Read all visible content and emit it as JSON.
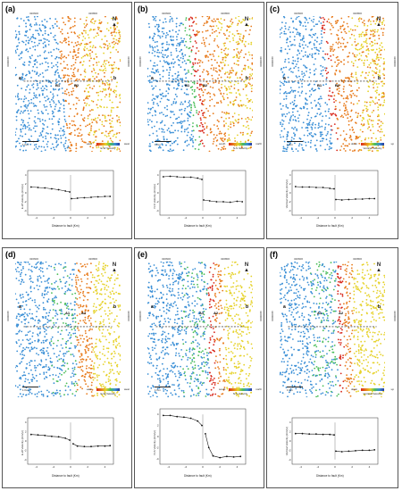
{
  "panels": [
    {
      "id": "a",
      "label": "(a)",
      "legend_low": "east",
      "legend_high": "west",
      "legend_caption": "E-W Velocity",
      "graph_ylabel": "E-W Velocity (mm/yr)",
      "graph_xlabel": "Distance to fault (Km)",
      "profile_start": "a",
      "profile_end": "b",
      "fault_labels": [
        "B1",
        "B2"
      ],
      "scale": "1 Km",
      "coord_top_left": "320600",
      "coord_top_right": "320800",
      "coord_left": "3260000",
      "coord_right": "3260000"
    },
    {
      "id": "b",
      "label": "(b)",
      "legend_low": "south",
      "legend_high": "north",
      "legend_caption": "N-S Velocity",
      "graph_ylabel": "N-S Velocity (mm/yr)",
      "graph_xlabel": "Distance to fault (Km)",
      "profile_start": "a",
      "profile_end": "b",
      "fault_labels": [
        "B1",
        "B2"
      ],
      "scale": "1 Km",
      "coord_top_left": "320600",
      "coord_top_right": "320800",
      "coord_left": "3260000",
      "coord_right": "3260000"
    },
    {
      "id": "c",
      "label": "(c)",
      "legend_low": "down",
      "legend_high": "up",
      "legend_caption": "Vertical Velocity",
      "graph_ylabel": "Vertical Velocity (mm/yr)",
      "graph_xlabel": "Distance to fault (Km)",
      "profile_start": "a",
      "profile_end": "b",
      "fault_labels": [
        "B1",
        "B2"
      ],
      "scale": "1 Km",
      "coord_top_left": "320600",
      "coord_top_right": "320800",
      "coord_left": "3260000",
      "coord_right": "3260000"
    },
    {
      "id": "d",
      "label": "(d)",
      "legend_low": "east",
      "legend_high": "west",
      "legend_caption": "E-W Velocity",
      "graph_ylabel": "E-W Velocity (mm/yr)",
      "graph_xlabel": "Distance to fault (Km)",
      "profile_start": "a",
      "profile_end": "b",
      "fault_labels": [
        "A1",
        "A2"
      ],
      "scale": "1 Km",
      "coord_top_left": "320600",
      "coord_top_right": "320800",
      "coord_left": "3260000",
      "coord_right": "3260000"
    },
    {
      "id": "e",
      "label": "(e)",
      "legend_low": "south",
      "legend_high": "north",
      "legend_caption": "N-S Velocity",
      "graph_ylabel": "N-S Velocity (mm/yr)",
      "graph_xlabel": "Distance to fault (Km)",
      "profile_start": "a",
      "profile_end": "b",
      "fault_labels": [
        "A1",
        "A2"
      ],
      "scale": "1 Km",
      "coord_top_left": "320600",
      "coord_top_right": "320800",
      "coord_left": "3260000",
      "coord_right": "3260000"
    },
    {
      "id": "f",
      "label": "(f)",
      "legend_low": "down",
      "legend_high": "up",
      "legend_caption": "Vertical Velocity",
      "graph_ylabel": "Vertical Velocity (mm/yr)",
      "graph_xlabel": "Distance to fault (Km)",
      "profile_start": "a",
      "profile_end": "b",
      "fault_labels": [
        "A1",
        "A2"
      ],
      "scale": "1 Km",
      "coord_top_left": "320600",
      "coord_top_right": "320800",
      "coord_left": "3260000",
      "coord_right": "3260000"
    }
  ],
  "north_symbol": "N",
  "colors": {
    "west_blue": "#3a8fd6",
    "east_orange": "#e87b1c",
    "east_yellow": "#e6d22a",
    "fault_red": "#d8281c",
    "green": "#4bbd5a"
  },
  "chart_data": [
    {
      "type": "scatter",
      "panel": "a",
      "xlabel": "Distance to fault (Km)",
      "ylabel": "E-W Velocity (mm/yr)",
      "x_ticks": [
        "-4",
        "-2",
        "0",
        "2",
        "4"
      ],
      "y_ticks": [
        "4",
        "2",
        "0",
        "-2",
        "-4"
      ],
      "xlim": [
        -5,
        5
      ],
      "ylim": [
        -5,
        5
      ],
      "series": [
        {
          "x": [
            -4.6,
            -3.8,
            -3.0,
            -2.2,
            -1.4,
            -0.6,
            -0.1,
            0.1,
            0.8,
            1.6,
            2.4,
            3.2,
            4.0,
            4.6
          ],
          "y": [
            1.3,
            1.2,
            1.1,
            0.9,
            0.7,
            0.4,
            0.2,
            -1.3,
            -1.2,
            -1.1,
            -1.0,
            -0.9,
            -0.8,
            -0.8
          ]
        }
      ]
    },
    {
      "type": "scatter",
      "panel": "b",
      "xlabel": "Distance to fault (Km)",
      "ylabel": "N-S Velocity (mm/yr)",
      "x_ticks": [
        "-4",
        "-2",
        "0",
        "2",
        "4"
      ],
      "y_ticks": [
        "4",
        "2",
        "0",
        "-2",
        "-4"
      ],
      "xlim": [
        -5,
        5
      ],
      "ylim": [
        -5,
        5
      ],
      "series": [
        {
          "x": [
            -4.6,
            -3.8,
            -3.0,
            -2.2,
            -1.4,
            -0.6,
            -0.1,
            0.1,
            0.8,
            1.6,
            2.4,
            3.2,
            4.0,
            4.6
          ],
          "y": [
            3.6,
            3.7,
            3.6,
            3.5,
            3.5,
            3.3,
            3.0,
            -1.6,
            -1.8,
            -2.0,
            -2.0,
            -2.1,
            -1.9,
            -2.0
          ]
        }
      ]
    },
    {
      "type": "scatter",
      "panel": "c",
      "xlabel": "Distance to fault (Km)",
      "ylabel": "Vertical Velocity (mm/yr)",
      "x_ticks": [
        "-4",
        "-2",
        "0",
        "2",
        "4"
      ],
      "y_ticks": [
        "4",
        "2",
        "0",
        "-2",
        "-4"
      ],
      "xlim": [
        -5,
        5
      ],
      "ylim": [
        -5,
        5
      ],
      "series": [
        {
          "x": [
            -4.6,
            -3.8,
            -3.0,
            -2.2,
            -1.4,
            -0.6,
            -0.1,
            0.1,
            0.8,
            1.6,
            2.4,
            3.2,
            4.0,
            4.6
          ],
          "y": [
            1.4,
            1.3,
            1.3,
            1.2,
            1.2,
            1.0,
            0.9,
            -1.5,
            -1.6,
            -1.5,
            -1.4,
            -1.4,
            -1.3,
            -1.3
          ]
        }
      ]
    },
    {
      "type": "scatter",
      "panel": "d",
      "xlabel": "Distance to fault (Km)",
      "ylabel": "E-W Velocity (mm/yr)",
      "x_ticks": [
        "-4",
        "-2",
        "0",
        "2",
        "4"
      ],
      "y_ticks": [
        "4",
        "2",
        "0",
        "-2",
        "-4"
      ],
      "xlim": [
        -5,
        5
      ],
      "ylim": [
        -5,
        5
      ],
      "series": [
        {
          "x": [
            -4.6,
            -3.8,
            -3.0,
            -2.2,
            -1.4,
            -0.6,
            -0.1,
            0.3,
            0.8,
            1.6,
            2.4,
            3.2,
            4.0,
            4.6
          ],
          "y": [
            1.4,
            1.3,
            1.2,
            1.0,
            0.9,
            0.6,
            0.2,
            -0.6,
            -1.1,
            -1.2,
            -1.2,
            -1.1,
            -1.1,
            -1.0
          ]
        }
      ]
    },
    {
      "type": "scatter",
      "panel": "e",
      "xlabel": "Distance to fault (Km)",
      "ylabel": "N-S Velocity (mm/yr)",
      "x_ticks": [
        "-4",
        "-2",
        "0",
        "2",
        "4"
      ],
      "y_ticks": [
        "4",
        "2",
        "0",
        "-2",
        "-4"
      ],
      "xlim": [
        -5,
        5
      ],
      "ylim": [
        -5,
        5
      ],
      "series": [
        {
          "x": [
            -4.6,
            -3.8,
            -3.0,
            -2.2,
            -1.4,
            -0.6,
            -0.1,
            0.3,
            0.7,
            1.2,
            2.0,
            2.8,
            3.6,
            4.4
          ],
          "y": [
            3.8,
            3.8,
            3.6,
            3.5,
            3.3,
            2.8,
            2.0,
            0.5,
            -2.0,
            -3.5,
            -3.8,
            -3.6,
            -3.7,
            -3.6
          ]
        }
      ]
    },
    {
      "type": "scatter",
      "panel": "f",
      "xlabel": "Distance to fault (Km)",
      "ylabel": "Vertical Velocity (mm/yr)",
      "x_ticks": [
        "-4",
        "-2",
        "0",
        "2",
        "4"
      ],
      "y_ticks": [
        "4",
        "2",
        "0",
        "-2",
        "-4"
      ],
      "xlim": [
        -5,
        5
      ],
      "ylim": [
        -5,
        5
      ],
      "series": [
        {
          "x": [
            -4.6,
            -3.8,
            -3.0,
            -2.2,
            -1.4,
            -0.6,
            -0.1,
            0.1,
            0.8,
            1.6,
            2.4,
            3.2,
            4.0,
            4.6
          ],
          "y": [
            1.6,
            1.6,
            1.5,
            1.5,
            1.4,
            1.4,
            1.3,
            -2.2,
            -2.3,
            -2.2,
            -2.1,
            -2.0,
            -2.0,
            -1.9
          ]
        }
      ]
    }
  ]
}
